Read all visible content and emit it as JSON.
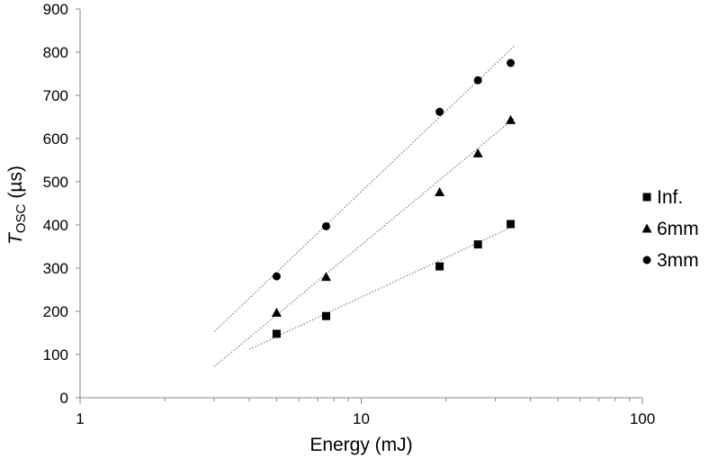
{
  "chart_data": {
    "type": "scatter",
    "x_scale": "log",
    "xlim": [
      1,
      100
    ],
    "ylim": [
      0,
      900
    ],
    "xticks": [
      1,
      10,
      100
    ],
    "xtick_labels": [
      "1",
      "10",
      "100"
    ],
    "yticks": [
      0,
      100,
      200,
      300,
      400,
      500,
      600,
      700,
      800,
      900
    ],
    "ytick_labels": [
      "0",
      "100",
      "200",
      "300",
      "400",
      "500",
      "600",
      "700",
      "800",
      "900"
    ],
    "xlabel": "Energy (mJ)",
    "ylabel_main": "T",
    "ylabel_sub": "OSC",
    "ylabel_unit": "(µs)",
    "grid": false,
    "legend_position": "right",
    "series": [
      {
        "name": "Inf.",
        "marker": "square",
        "x": [
          5,
          7.5,
          19,
          26,
          34
        ],
        "y": [
          148,
          189,
          304,
          355,
          402
        ],
        "trendline": {
          "x": [
            4,
            35
          ],
          "y": [
            112,
            398
          ]
        }
      },
      {
        "name": "6mm",
        "marker": "triangle",
        "x": [
          5,
          7.5,
          19,
          26,
          34
        ],
        "y": [
          197,
          280,
          476,
          566,
          643
        ],
        "trendline": {
          "x": [
            3,
            35
          ],
          "y": [
            72,
            647
          ]
        }
      },
      {
        "name": "3mm",
        "marker": "circle",
        "x": [
          5,
          7.5,
          19,
          26,
          34
        ],
        "y": [
          281,
          397,
          662,
          735,
          775
        ],
        "trendline": {
          "x": [
            3,
            35
          ],
          "y": [
            153,
            814
          ]
        }
      }
    ]
  }
}
